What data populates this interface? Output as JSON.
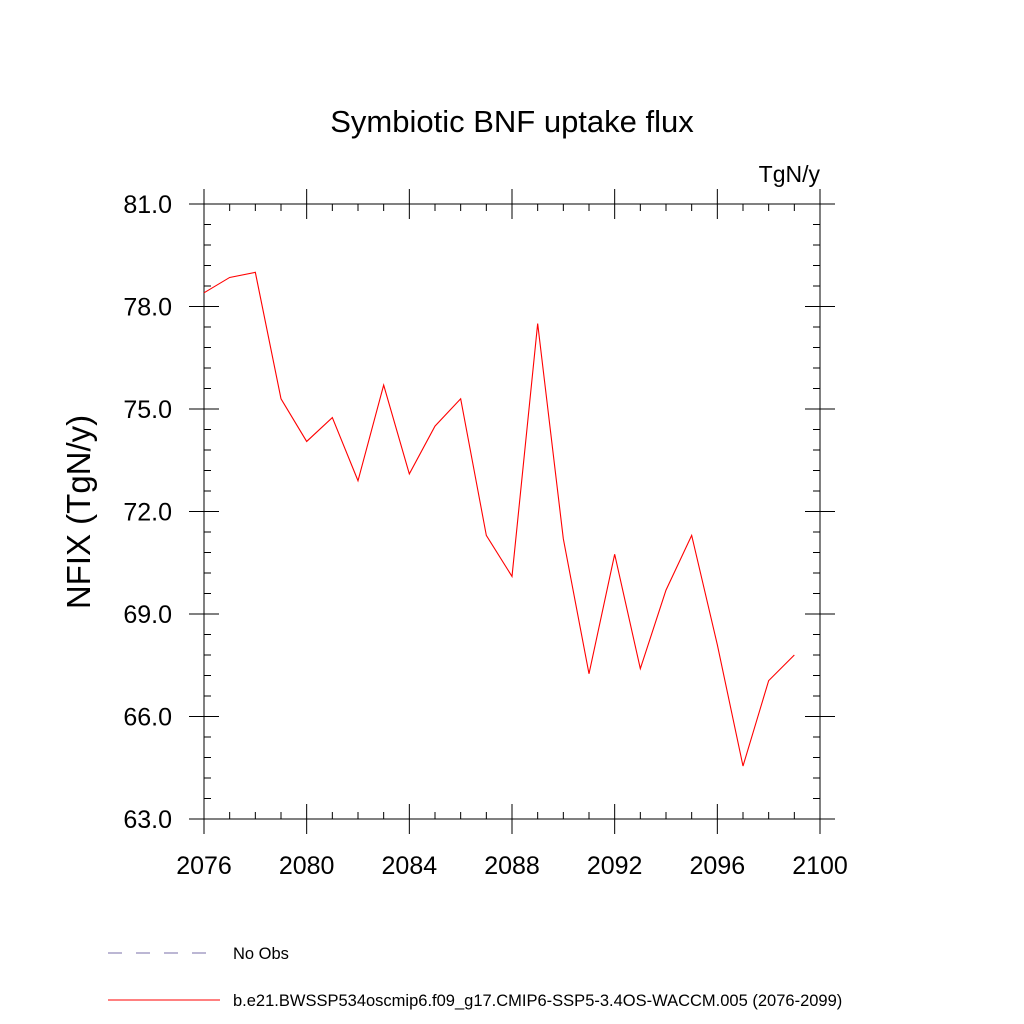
{
  "chart_data": {
    "type": "line",
    "title": "Symbiotic BNF uptake flux",
    "units_label": "TgN/y",
    "ylabel": "NFIX  (TgN/y)",
    "xlabel": "",
    "xlim": [
      2076,
      2100
    ],
    "ylim": [
      63.0,
      81.0
    ],
    "x_ticks": [
      2076,
      2080,
      2084,
      2088,
      2092,
      2096,
      2100
    ],
    "y_ticks": [
      "63.0",
      "66.0",
      "69.0",
      "72.0",
      "75.0",
      "78.0",
      "81.0"
    ],
    "grid": false,
    "legend_position": "bottom-left",
    "series": [
      {
        "name": "b.e21.BWSSP534oscmip6.f09_g17.CMIP6-SSP5-3.4OS-WACCM.005 (2076-2099)",
        "color": "#ff0000",
        "style": "solid",
        "x": [
          2076,
          2077,
          2078,
          2079,
          2080,
          2081,
          2082,
          2083,
          2084,
          2085,
          2086,
          2087,
          2088,
          2089,
          2090,
          2091,
          2092,
          2093,
          2094,
          2095,
          2096,
          2097,
          2098,
          2099
        ],
        "values": [
          78.4,
          78.85,
          79.0,
          75.3,
          74.05,
          74.75,
          72.9,
          75.7,
          73.1,
          74.5,
          75.3,
          71.3,
          70.1,
          77.5,
          71.2,
          67.25,
          70.75,
          67.4,
          69.7,
          71.3,
          68.1,
          64.55,
          67.05,
          67.8
        ]
      }
    ],
    "legend": [
      {
        "label": "No Obs",
        "color": "#7a6fa8",
        "style": "dashed"
      },
      {
        "label": "b.e21.BWSSP534oscmip6.f09_g17.CMIP6-SSP5-3.4OS-WACCM.005 (2076-2099)",
        "color": "#ff0000",
        "style": "solid"
      }
    ]
  }
}
